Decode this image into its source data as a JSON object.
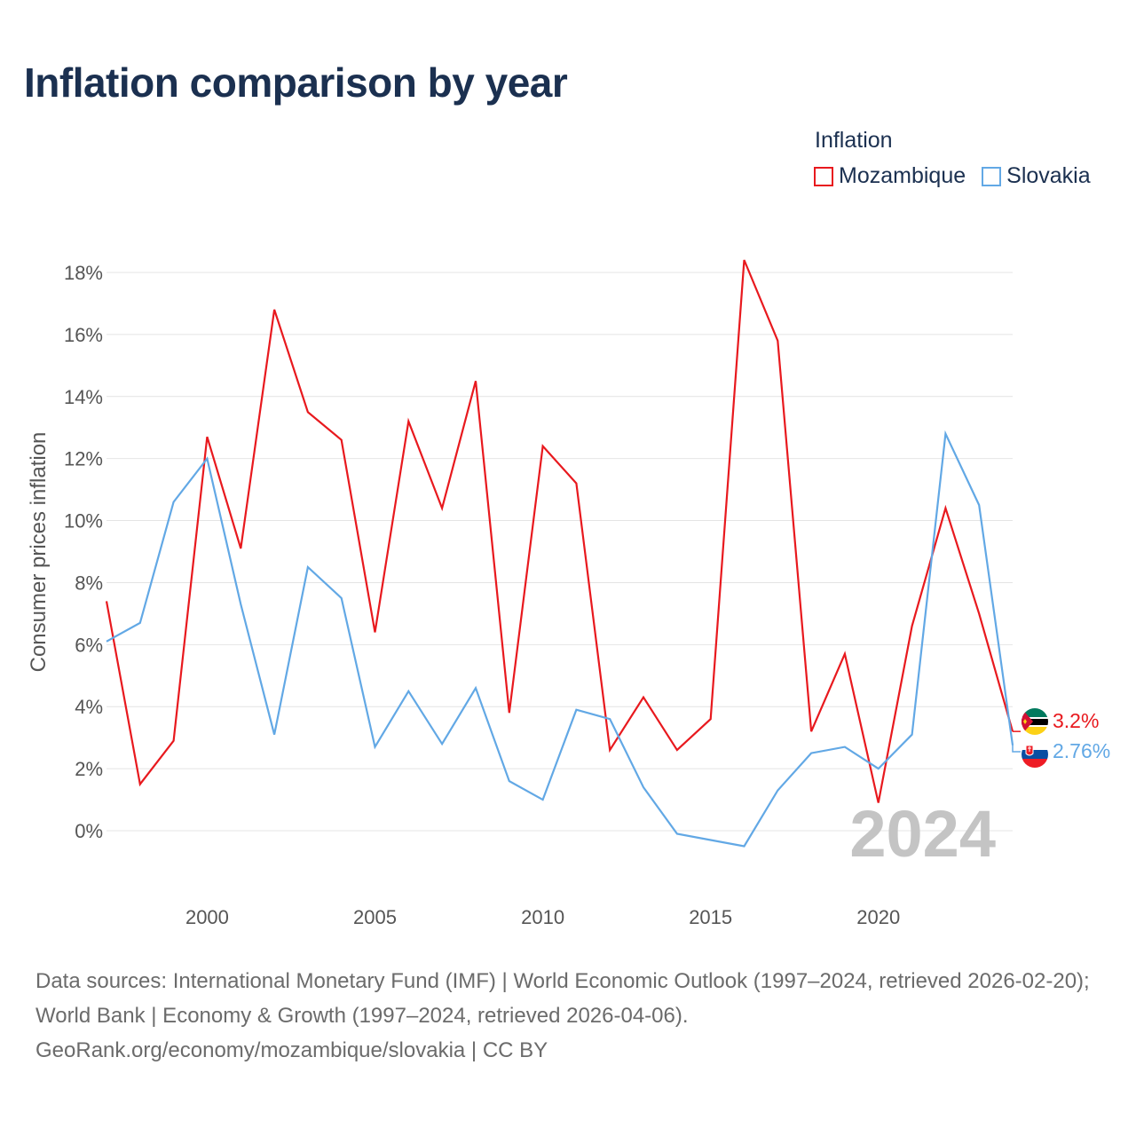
{
  "title": "Inflation comparison by year",
  "legend": {
    "title": "Inflation",
    "items": [
      {
        "name": "Mozambique",
        "color": "#e8191e"
      },
      {
        "name": "Slovakia",
        "color": "#62a8e5"
      }
    ]
  },
  "chart_data": {
    "type": "line",
    "title": "Inflation comparison by year",
    "ylabel": "Consumer prices inflation",
    "xlabel": "",
    "x": [
      1997,
      1998,
      1999,
      2000,
      2001,
      2002,
      2003,
      2004,
      2005,
      2006,
      2007,
      2008,
      2009,
      2010,
      2011,
      2012,
      2013,
      2014,
      2015,
      2016,
      2017,
      2018,
      2019,
      2020,
      2021,
      2022,
      2023,
      2024
    ],
    "xlim": [
      1997,
      2024
    ],
    "ylim": [
      -2,
      19.5
    ],
    "xticks": [
      2000,
      2005,
      2010,
      2015,
      2020
    ],
    "xtick_labels": [
      "2000",
      "2005",
      "2010",
      "2015",
      "2020"
    ],
    "yticks": [
      0,
      2,
      4,
      6,
      8,
      10,
      12,
      14,
      16,
      18
    ],
    "ytick_labels": [
      "0%",
      "2%",
      "4%",
      "6%",
      "8%",
      "10%",
      "12%",
      "14%",
      "16%",
      "18%"
    ],
    "series": [
      {
        "name": "Mozambique",
        "color": "#e8191e",
        "flag": "mozambique-flag",
        "values": [
          7.4,
          1.5,
          2.9,
          12.7,
          9.1,
          16.8,
          13.5,
          12.6,
          6.4,
          13.2,
          10.4,
          14.5,
          3.8,
          12.4,
          11.2,
          2.6,
          4.3,
          2.6,
          3.6,
          18.4,
          15.8,
          3.2,
          5.7,
          0.9,
          6.6,
          10.4,
          7.0,
          3.2
        ],
        "end_label": "3.2%"
      },
      {
        "name": "Slovakia",
        "color": "#62a8e5",
        "flag": "slovakia-flag",
        "values": [
          6.1,
          6.7,
          10.6,
          12.0,
          7.3,
          3.1,
          8.5,
          7.5,
          2.7,
          4.5,
          2.8,
          4.6,
          1.6,
          1.0,
          3.9,
          3.6,
          1.4,
          -0.1,
          -0.3,
          -0.5,
          1.3,
          2.5,
          2.7,
          2.0,
          3.1,
          12.8,
          10.5,
          2.76
        ],
        "end_label": "2.76%"
      }
    ],
    "year_watermark": "2024",
    "grid": true
  },
  "footer": {
    "line1": "Data sources: International Monetary Fund (IMF) | World Economic Outlook (1997–2024, retrieved 2026-02-20); World Bank | Economy & Growth (1997–2024, retrieved 2026-04-06).",
    "line2": "GeoRank.org/economy/mozambique/slovakia | CC BY"
  }
}
